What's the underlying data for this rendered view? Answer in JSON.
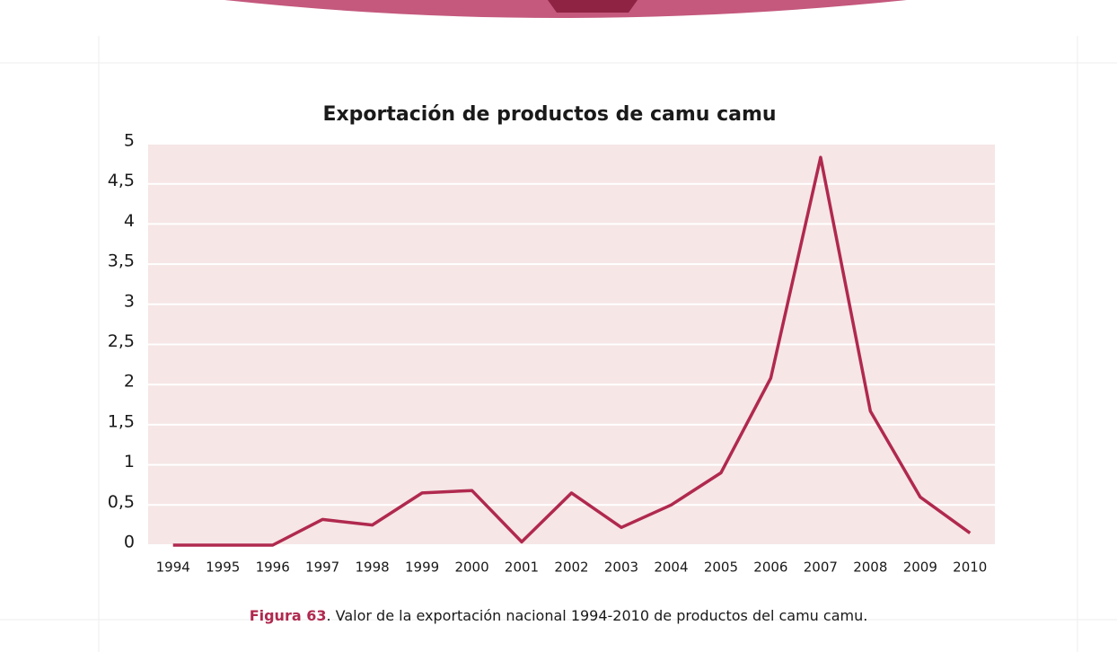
{
  "chart_data": {
    "type": "line",
    "title": "Exportación de productos de camu camu",
    "caption_label": "Figura 63",
    "caption_text": ". Valor de la exportación nacional 1994-2010 de productos del camu camu.",
    "categories": [
      "1994",
      "1995",
      "1996",
      "1997",
      "1998",
      "1999",
      "2000",
      "2001",
      "2002",
      "2003",
      "2004",
      "2005",
      "2006",
      "2007",
      "2008",
      "2009",
      "2010"
    ],
    "series": [
      {
        "color": "#b0294e",
        "values": [
          0,
          0,
          0,
          0.32,
          0.25,
          0.65,
          0.68,
          0.04,
          0.65,
          0.22,
          0.5,
          0.9,
          2.08,
          4.83,
          1.67,
          0.6,
          0.15
        ]
      }
    ],
    "ylim": [
      0,
      5
    ],
    "yticks": [
      0,
      {
        "value": 0.5,
        "label": "0,5"
      },
      1,
      {
        "value": 1.5,
        "label": "1,5"
      },
      2,
      {
        "value": 2.5,
        "label": "2,5"
      },
      3,
      {
        "value": 3.5,
        "label": "3,5"
      },
      4,
      {
        "value": 4.5,
        "label": "4,5"
      },
      5
    ],
    "grid": true
  }
}
